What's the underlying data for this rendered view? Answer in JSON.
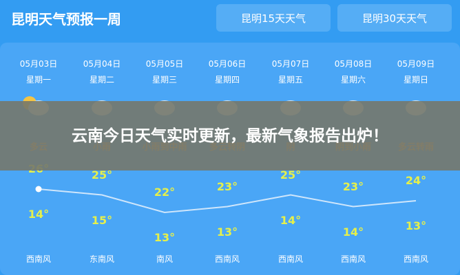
{
  "header": {
    "title": "昆明天气预报一周",
    "buttons": [
      "昆明15天天气",
      "昆明30天天气"
    ]
  },
  "days": [
    {
      "date": "05月03日",
      "weekday": "星期一",
      "icon": "partly-cloudy-icon",
      "condition": "多云",
      "high": "26°",
      "low": "14°",
      "wind": "西南风",
      "high_value": 26,
      "low_value": 14
    },
    {
      "date": "05月04日",
      "weekday": "星期二",
      "icon": "rain-icon",
      "condition": "小雨",
      "high": "25°",
      "low": "15°",
      "wind": "东南风",
      "high_value": 25,
      "low_value": 15
    },
    {
      "date": "05月05日",
      "weekday": "星期三",
      "icon": "rain-icon",
      "condition": "小雨到中雨",
      "high": "22°",
      "low": "13°",
      "wind": "南风",
      "high_value": 22,
      "low_value": 13
    },
    {
      "date": "05月06日",
      "weekday": "星期四",
      "icon": "cloudy-icon",
      "condition": "多云转阴",
      "high": "23°",
      "low": "13°",
      "wind": "西南风",
      "high_value": 23,
      "low_value": 13
    },
    {
      "date": "05月07日",
      "weekday": "星期五",
      "icon": "overcast-icon",
      "condition": "阴",
      "high": "25°",
      "low": "14°",
      "wind": "西南风",
      "high_value": 25,
      "low_value": 14
    },
    {
      "date": "05月08日",
      "weekday": "星期六",
      "icon": "rain-icon",
      "condition": "阴到小雨",
      "high": "23°",
      "low": "14°",
      "wind": "西南风",
      "high_value": 23,
      "low_value": 14
    },
    {
      "date": "05月09日",
      "weekday": "星期日",
      "icon": "rain-icon",
      "condition": "多云转雨",
      "high": "24°",
      "low": "13°",
      "wind": "西南风",
      "high_value": 24,
      "low_value": 13
    }
  ],
  "overlay": {
    "headline": "云南今日天气实时更新，最新气象报告出炉！"
  },
  "colors": {
    "background": "#339cf2",
    "panel": "#4aa6f6",
    "temperature": "#e6f04a",
    "condition": "#f0a848"
  }
}
